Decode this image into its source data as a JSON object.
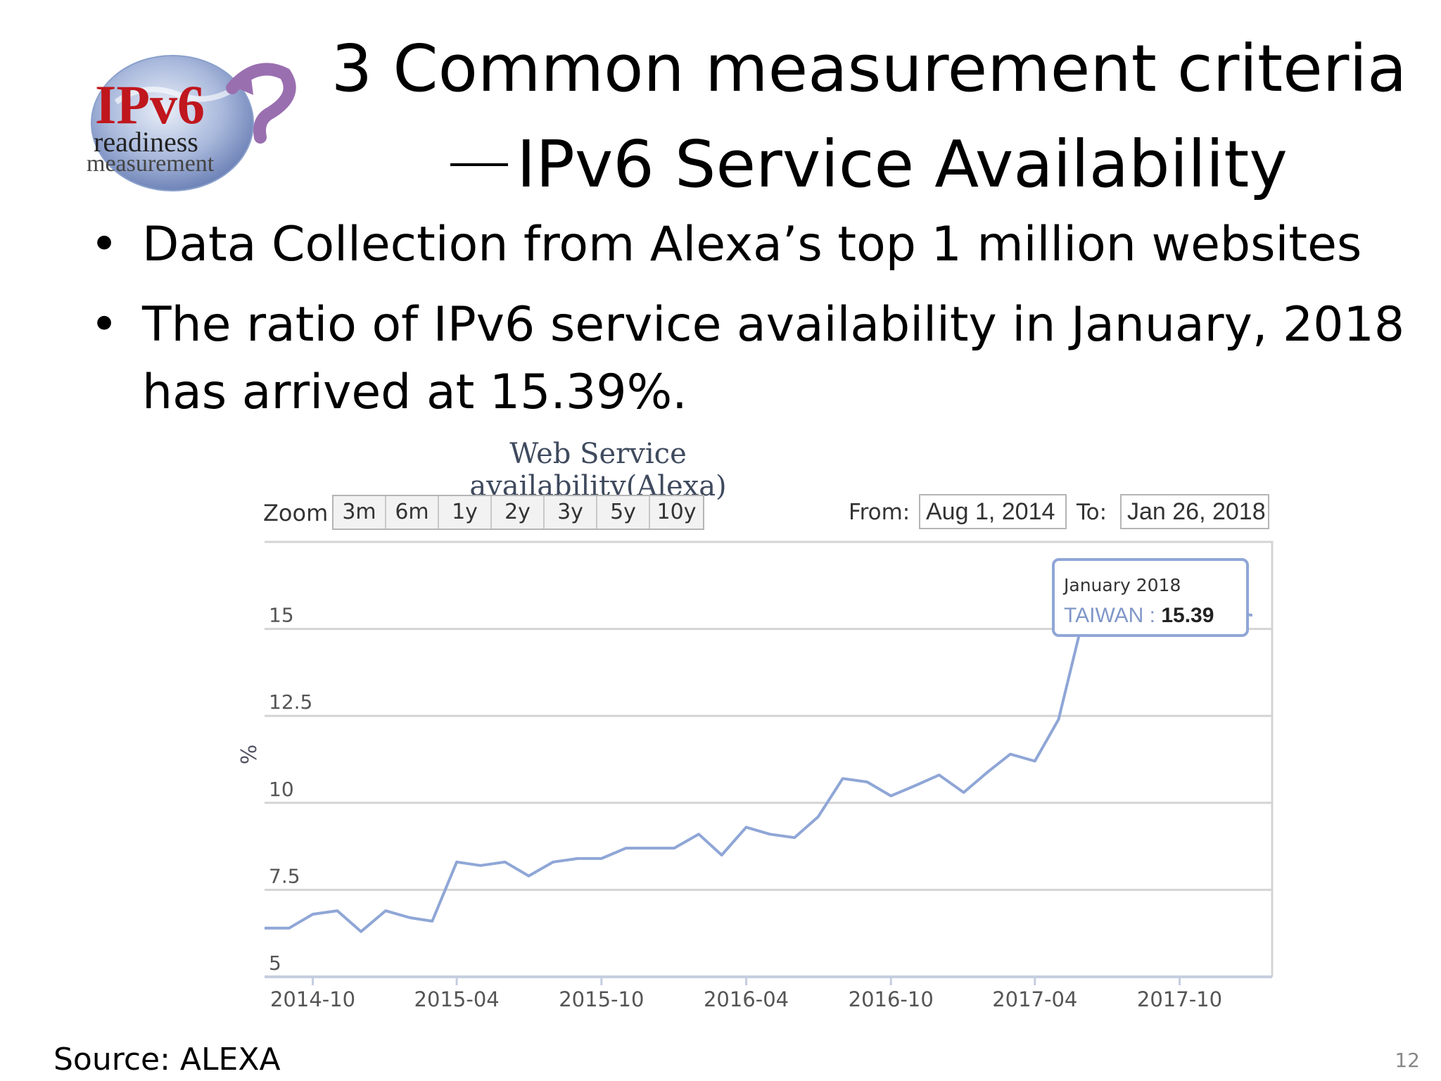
{
  "slide": {
    "title_line1": "3 Common measurement criteria",
    "title_line2": "IPv6 Service Availability",
    "bullets": [
      "Data Collection from Alexa’s top 1 million websites",
      "The ratio of IPv6 service availability in January, 2018 has arrived at 15.39%."
    ],
    "source": "Source: ALEXA",
    "page_number": "12"
  },
  "logo": {
    "text_main": "IPv6",
    "text_sub1": "readiness",
    "text_sub2": "measurement"
  },
  "toolbar": {
    "zoom_label": "Zoom",
    "zoom_buttons": [
      "3m",
      "6m",
      "1y",
      "2y",
      "3y",
      "5y",
      "10y"
    ],
    "from_label": "From:",
    "from_value": "Aug 1, 2014",
    "to_label": "To:",
    "to_value": "Jan 26, 2018"
  },
  "colors": {
    "series": "#8fa6d6",
    "tooltip_border": "#8fa6d6",
    "grid": "#d4d4d4",
    "axis_text": "#555555",
    "title_text": "#3f4a5e"
  },
  "chart_data": {
    "type": "line",
    "title": "Web Service availability(Alexa)",
    "ylabel": "%",
    "ylim": [
      5,
      17.5
    ],
    "yticks": [
      5,
      7.5,
      10,
      12.5,
      15
    ],
    "y_tick_labels": [
      "5",
      "7.5",
      "10",
      "12.5",
      "15"
    ],
    "x_tick_labels": [
      "2014-10",
      "2015-04",
      "2015-10",
      "2016-04",
      "2016-10",
      "2017-04",
      "2017-10"
    ],
    "x_tick_dates": [
      "2014-10-01",
      "2015-04-01",
      "2015-10-01",
      "2016-04-01",
      "2016-10-01",
      "2017-04-01",
      "2017-10-01"
    ],
    "xlim": [
      "2014-08-01",
      "2018-01-26"
    ],
    "grid": true,
    "series": [
      {
        "name": "TAIWAN",
        "x": [
          "2014-08-01",
          "2014-09-01",
          "2014-10-01",
          "2014-11-01",
          "2014-12-01",
          "2015-01-01",
          "2015-02-01",
          "2015-03-01",
          "2015-04-01",
          "2015-05-01",
          "2015-06-01",
          "2015-07-01",
          "2015-08-01",
          "2015-09-01",
          "2015-10-01",
          "2015-11-01",
          "2015-12-01",
          "2016-01-01",
          "2016-02-01",
          "2016-03-01",
          "2016-04-01",
          "2016-05-01",
          "2016-06-01",
          "2016-07-01",
          "2016-08-01",
          "2016-09-01",
          "2016-10-01",
          "2016-11-01",
          "2016-12-01",
          "2017-01-01",
          "2017-02-01",
          "2017-03-01",
          "2017-04-01",
          "2017-05-01",
          "2017-06-01",
          "2017-07-01",
          "2017-08-01",
          "2017-09-01",
          "2017-10-01",
          "2017-11-01",
          "2017-12-01",
          "2018-01-01"
        ],
        "values": [
          6.4,
          6.4,
          6.8,
          6.9,
          6.3,
          6.9,
          6.7,
          6.6,
          8.3,
          8.2,
          8.3,
          7.9,
          8.3,
          8.4,
          8.4,
          8.7,
          8.7,
          8.7,
          9.1,
          8.5,
          9.3,
          9.1,
          9.0,
          9.6,
          10.7,
          10.6,
          10.2,
          10.5,
          10.8,
          10.3,
          10.9,
          11.4,
          11.2,
          12.4,
          15.3,
          15.4,
          15.39,
          15.4,
          15.5,
          15.5,
          15.5,
          15.39
        ]
      }
    ],
    "tooltip": {
      "date": "January 2018",
      "series_name": "TAIWAN",
      "value": "15.39"
    }
  }
}
